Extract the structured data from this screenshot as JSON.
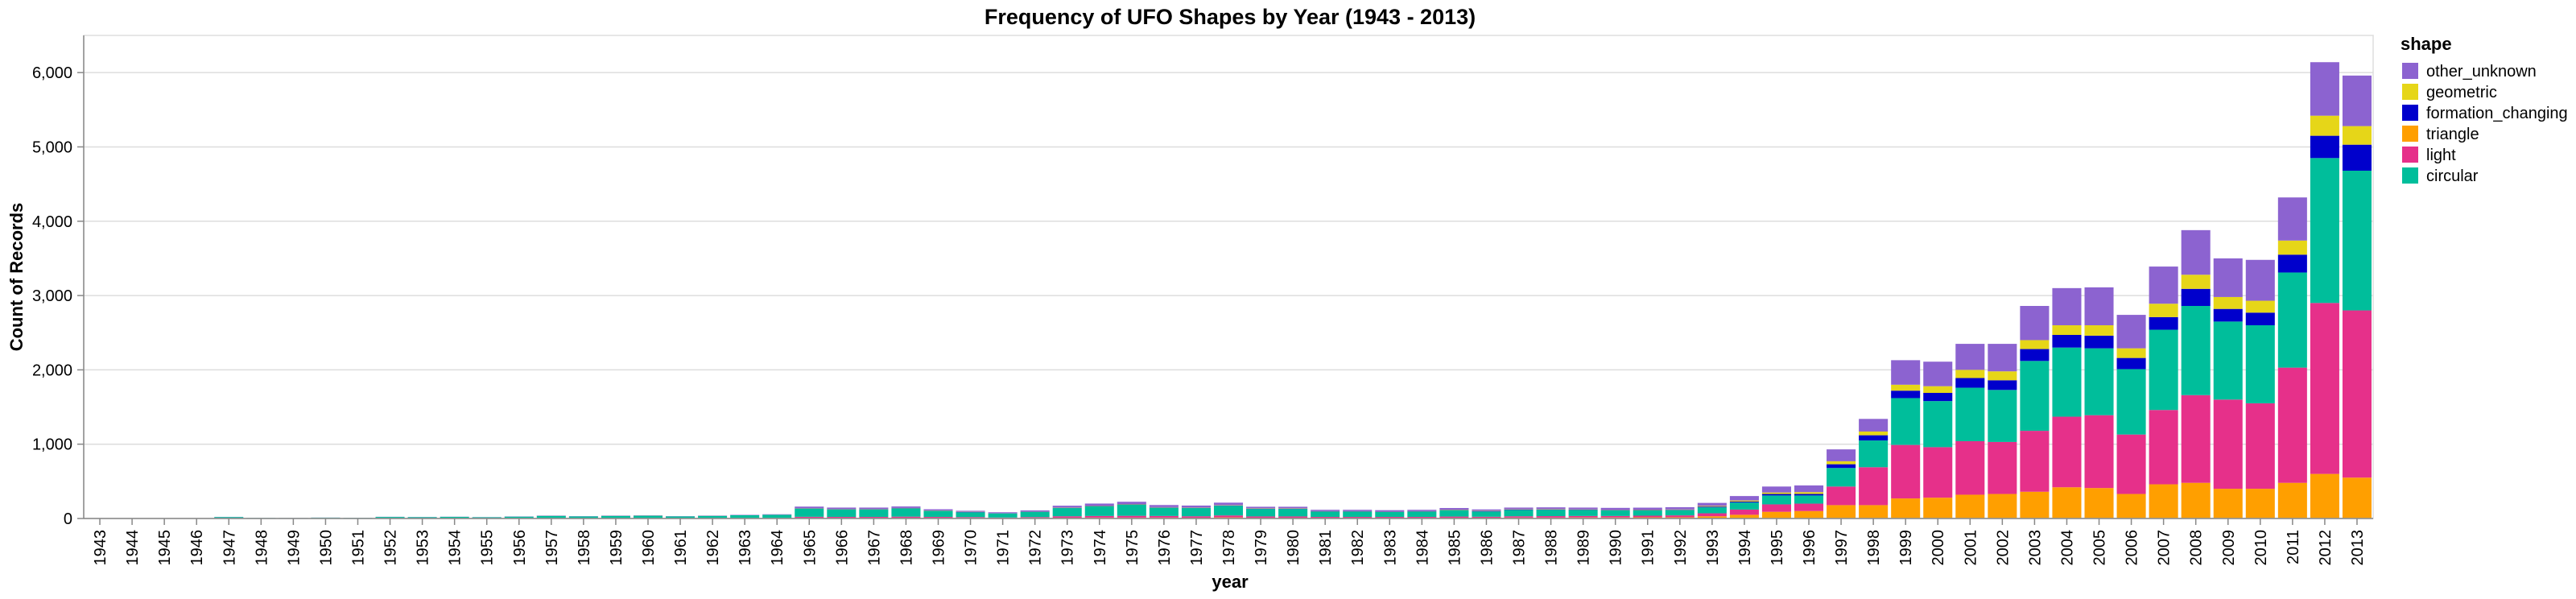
{
  "chart_data": {
    "type": "bar",
    "stacked": true,
    "title": "Frequency of UFO Shapes by Year (1943 - 2013)",
    "xlabel": "year",
    "ylabel": "Count of Records",
    "ylim": [
      0,
      6500
    ],
    "yticks": [
      0,
      1000,
      2000,
      3000,
      4000,
      5000,
      6000
    ],
    "ytick_labels": [
      "0",
      "1,000",
      "2,000",
      "3,000",
      "4,000",
      "5,000",
      "6,000"
    ],
    "grid": true,
    "legend_title": "shape",
    "legend_position": "right",
    "categories": [
      "1943",
      "1944",
      "1945",
      "1946",
      "1947",
      "1948",
      "1949",
      "1950",
      "1951",
      "1952",
      "1953",
      "1954",
      "1955",
      "1956",
      "1957",
      "1958",
      "1959",
      "1960",
      "1961",
      "1962",
      "1963",
      "1964",
      "1965",
      "1966",
      "1967",
      "1968",
      "1969",
      "1970",
      "1971",
      "1972",
      "1973",
      "1974",
      "1975",
      "1976",
      "1977",
      "1978",
      "1979",
      "1980",
      "1981",
      "1982",
      "1983",
      "1984",
      "1985",
      "1986",
      "1987",
      "1988",
      "1989",
      "1990",
      "1991",
      "1992",
      "1993",
      "1994",
      "1995",
      "1996",
      "1997",
      "1998",
      "1999",
      "2000",
      "2001",
      "2002",
      "2003",
      "2004",
      "2005",
      "2006",
      "2007",
      "2008",
      "2009",
      "2010",
      "2011",
      "2012",
      "2013"
    ],
    "series": [
      {
        "name": "triangle",
        "color": "#ff9f00",
        "values": [
          0,
          0,
          0,
          0,
          1,
          0,
          0,
          0,
          0,
          0,
          0,
          1,
          1,
          1,
          2,
          1,
          2,
          2,
          1,
          2,
          3,
          3,
          8,
          8,
          8,
          9,
          8,
          7,
          5,
          7,
          10,
          12,
          12,
          12,
          10,
          15,
          10,
          10,
          8,
          8,
          8,
          8,
          10,
          10,
          12,
          12,
          14,
          14,
          16,
          17,
          30,
          50,
          90,
          100,
          180,
          180,
          270,
          280,
          320,
          330,
          360,
          420,
          410,
          330,
          460,
          480,
          400,
          400,
          480,
          600,
          550
        ]
      },
      {
        "name": "light",
        "color": "#e6308a",
        "values": [
          0,
          0,
          0,
          0,
          1,
          0,
          0,
          0,
          0,
          1,
          1,
          1,
          1,
          2,
          3,
          2,
          3,
          3,
          2,
          3,
          3,
          4,
          15,
          14,
          14,
          16,
          14,
          12,
          8,
          12,
          20,
          22,
          24,
          22,
          20,
          26,
          18,
          18,
          14,
          14,
          14,
          14,
          16,
          14,
          18,
          20,
          20,
          20,
          22,
          25,
          40,
          70,
          100,
          100,
          250,
          510,
          720,
          680,
          720,
          700,
          820,
          950,
          980,
          800,
          1000,
          1180,
          1200,
          1150,
          1550,
          2300,
          2250
        ]
      },
      {
        "name": "circular",
        "color": "#00be9b",
        "values": [
          0,
          3,
          5,
          4,
          18,
          8,
          7,
          12,
          9,
          20,
          18,
          20,
          15,
          22,
          30,
          25,
          30,
          32,
          25,
          30,
          38,
          42,
          110,
          100,
          100,
          110,
          80,
          65,
          55,
          70,
          110,
          130,
          150,
          110,
          110,
          130,
          100,
          100,
          70,
          70,
          65,
          70,
          85,
          70,
          85,
          85,
          80,
          75,
          70,
          70,
          80,
          95,
          120,
          110,
          250,
          360,
          630,
          620,
          720,
          700,
          940,
          930,
          900,
          880,
          1080,
          1200,
          1050,
          1050,
          1280,
          1950,
          1880
        ]
      },
      {
        "name": "formation_changing",
        "color": "#0000cc",
        "values": [
          0,
          0,
          0,
          0,
          0,
          0,
          0,
          0,
          0,
          0,
          0,
          0,
          0,
          0,
          0,
          0,
          0,
          0,
          0,
          0,
          0,
          1,
          4,
          4,
          4,
          4,
          3,
          3,
          2,
          3,
          4,
          5,
          5,
          5,
          4,
          5,
          4,
          4,
          4,
          4,
          4,
          4,
          4,
          4,
          4,
          4,
          4,
          4,
          5,
          5,
          10,
          12,
          20,
          20,
          50,
          70,
          100,
          110,
          130,
          130,
          160,
          170,
          170,
          150,
          170,
          230,
          170,
          170,
          240,
          300,
          350
        ]
      },
      {
        "name": "geometric",
        "color": "#e6d618",
        "values": [
          0,
          0,
          0,
          0,
          0,
          0,
          0,
          0,
          0,
          0,
          0,
          0,
          0,
          0,
          1,
          0,
          1,
          1,
          0,
          1,
          1,
          1,
          3,
          3,
          3,
          3,
          3,
          3,
          2,
          3,
          4,
          4,
          4,
          4,
          4,
          5,
          4,
          4,
          3,
          3,
          3,
          3,
          4,
          4,
          4,
          4,
          4,
          4,
          5,
          5,
          10,
          15,
          20,
          25,
          40,
          50,
          80,
          90,
          110,
          120,
          120,
          130,
          140,
          130,
          180,
          190,
          160,
          160,
          190,
          270,
          250
        ]
      },
      {
        "name": "other_unknown",
        "color": "#8c63d0",
        "values": [
          0,
          0,
          0,
          0,
          2,
          1,
          1,
          1,
          1,
          2,
          2,
          2,
          2,
          3,
          4,
          3,
          4,
          4,
          3,
          4,
          5,
          6,
          20,
          18,
          18,
          20,
          16,
          14,
          12,
          14,
          24,
          28,
          30,
          28,
          26,
          32,
          22,
          22,
          18,
          18,
          18,
          18,
          22,
          20,
          24,
          25,
          25,
          26,
          28,
          30,
          40,
          60,
          80,
          90,
          160,
          170,
          330,
          330,
          350,
          370,
          460,
          500,
          510,
          450,
          500,
          600,
          520,
          550,
          580,
          720,
          680
        ]
      }
    ],
    "legend_order": [
      "other_unknown",
      "geometric",
      "formation_changing",
      "triangle",
      "light",
      "circular"
    ]
  }
}
